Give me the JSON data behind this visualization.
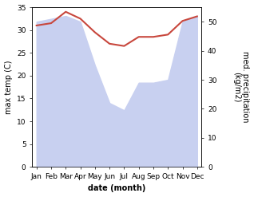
{
  "months": [
    "Jan",
    "Feb",
    "Mar",
    "Apr",
    "May",
    "Jun",
    "Jul",
    "Aug",
    "Sep",
    "Oct",
    "Nov",
    "Dec"
  ],
  "month_indices": [
    0,
    1,
    2,
    3,
    4,
    5,
    6,
    7,
    8,
    9,
    10,
    11
  ],
  "temperature": [
    31.0,
    31.5,
    34.0,
    32.5,
    29.5,
    27.0,
    26.5,
    28.5,
    28.5,
    29.0,
    32.0,
    33.0
  ],
  "precipitation": [
    50.0,
    51.0,
    52.0,
    50.0,
    35.0,
    22.0,
    19.5,
    29.0,
    29.0,
    30.0,
    50.0,
    52.0
  ],
  "temp_color": "#c8473d",
  "precip_color_fill": "#c8d0f0",
  "temp_ylim": [
    0,
    35
  ],
  "precip_ylim": [
    0,
    55
  ],
  "temp_yticks": [
    0,
    5,
    10,
    15,
    20,
    25,
    30,
    35
  ],
  "precip_yticks": [
    0,
    10,
    20,
    30,
    40,
    50
  ],
  "xlabel": "date (month)",
  "ylabel_left": "max temp (C)",
  "ylabel_right": "med. precipitation\n(kg/m2)",
  "background_color": "#ffffff",
  "line_width": 1.5
}
